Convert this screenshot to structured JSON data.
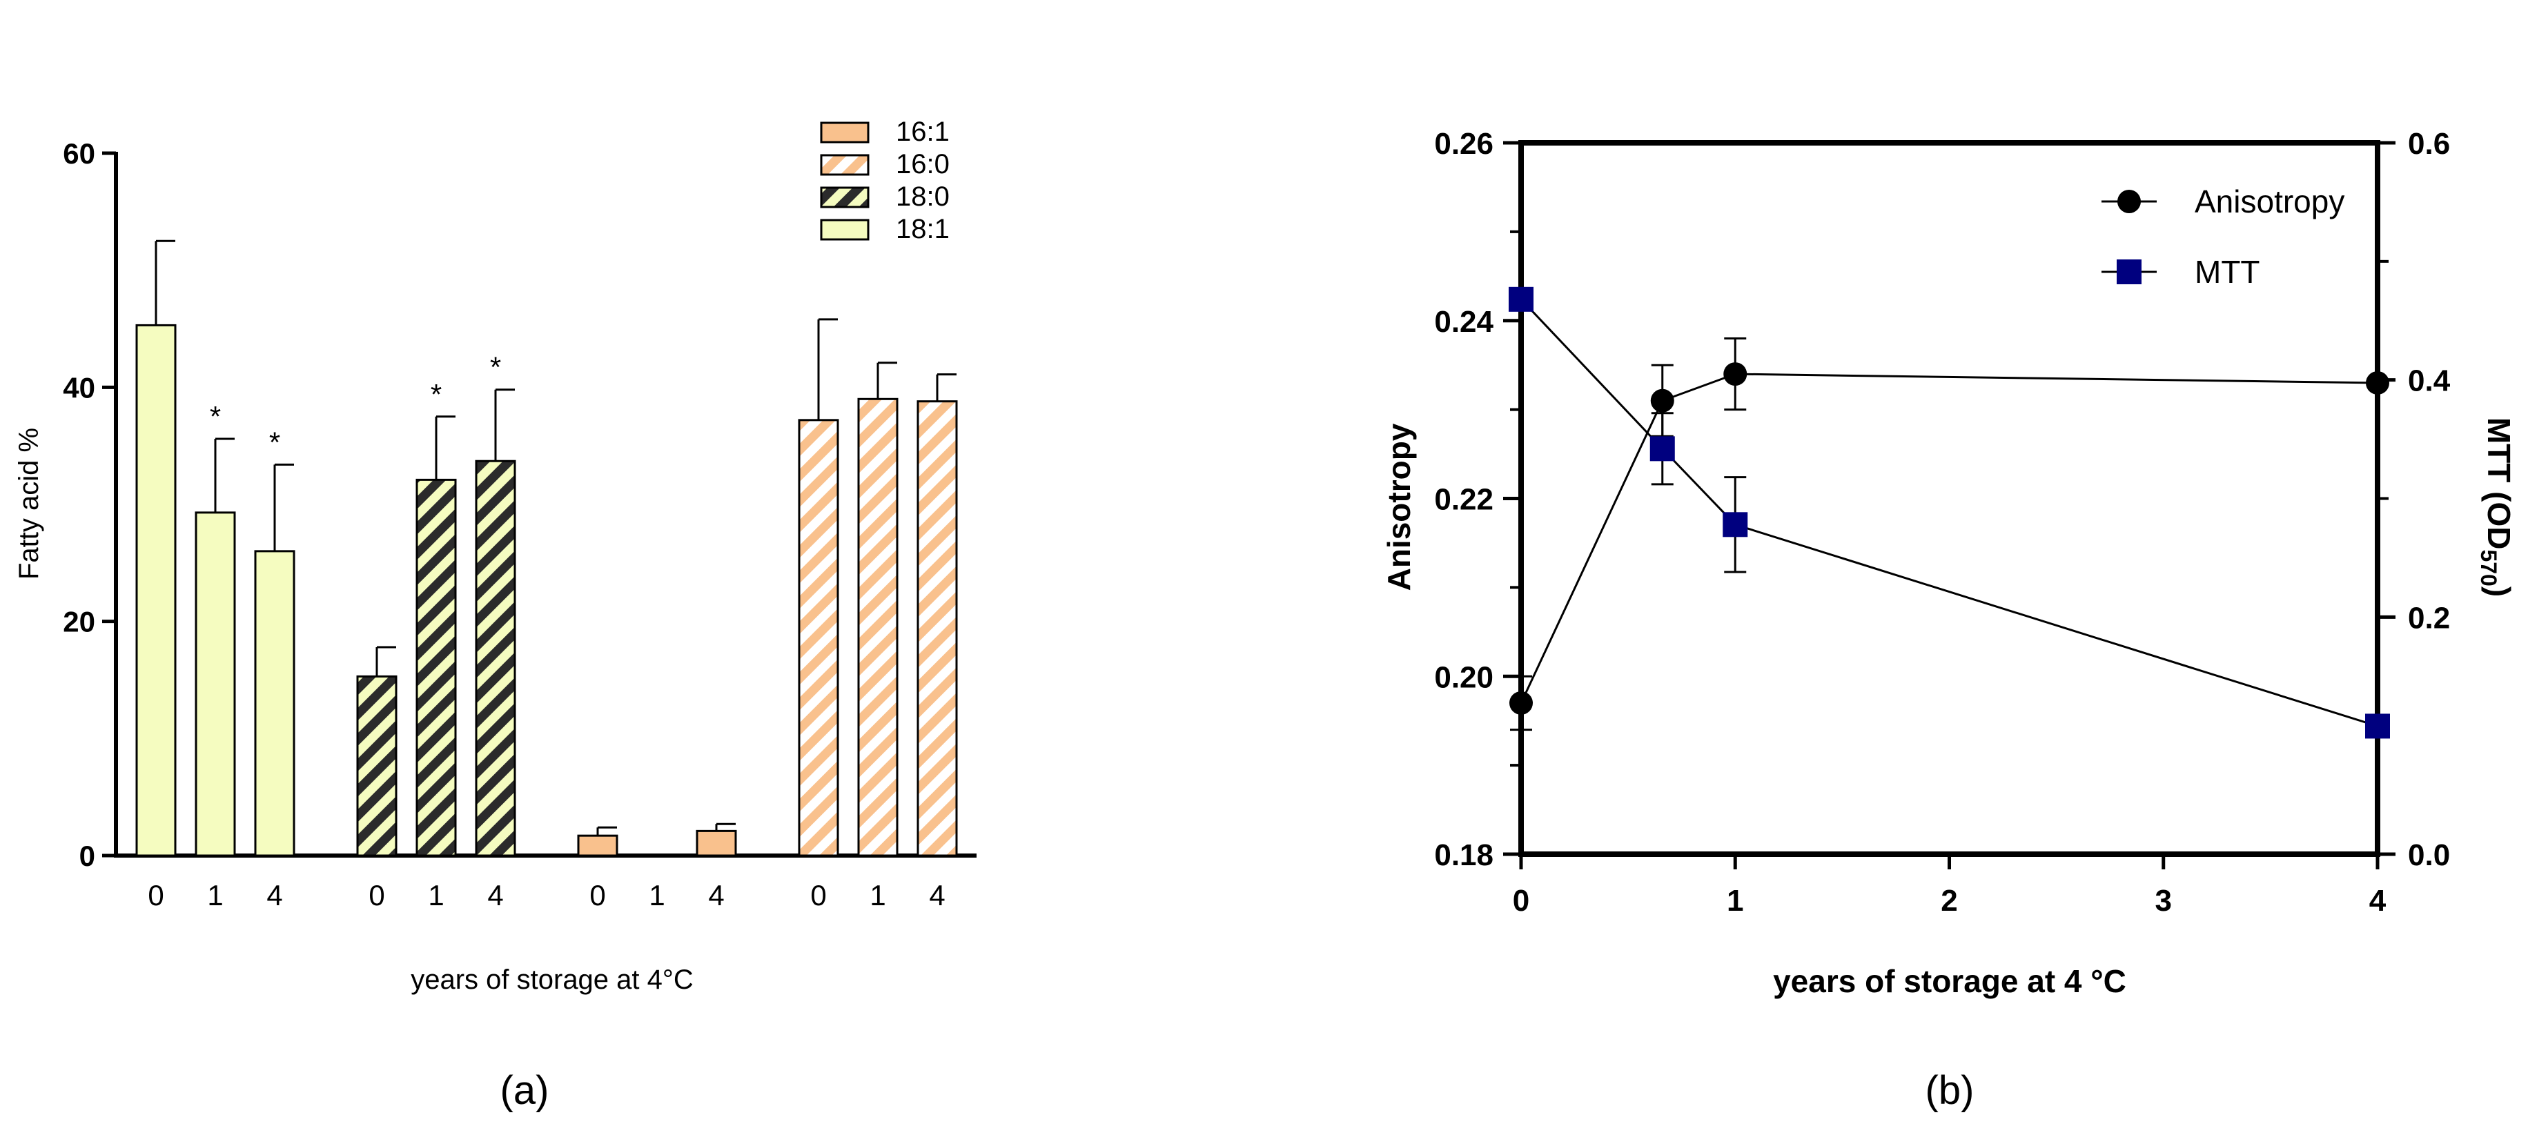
{
  "chart_data": [
    {
      "type": "bar",
      "panel_label": "(a)",
      "xlabel": "years of storage at 4°C",
      "ylabel": "Fatty acid %",
      "ylim": [
        0,
        60
      ],
      "yticks": [
        0,
        20,
        40,
        60
      ],
      "grid": false,
      "legend_position": "top-right",
      "colors": {
        "18:1": "#f5fcc0",
        "18:0": "#f5fcc0",
        "16:1": "#f9c18d",
        "16:0": "#f9c18d",
        "hatch_dark": "#2b2b2b",
        "hatch_light": "#ffffff"
      },
      "legend": [
        {
          "name": "16:1",
          "pattern": "solid"
        },
        {
          "name": "16:0",
          "pattern": "hatch-light"
        },
        {
          "name": "18:0",
          "pattern": "hatch-dark"
        },
        {
          "name": "18:1",
          "pattern": "solid"
        }
      ],
      "groups": [
        {
          "series": "18:1",
          "categories": [
            "0",
            "1",
            "4"
          ],
          "values": [
            45.3,
            29.3,
            26.0
          ],
          "errors": [
            7.2,
            6.3,
            7.4
          ],
          "significant": [
            false,
            true,
            true
          ]
        },
        {
          "series": "18:0",
          "categories": [
            "0",
            "1",
            "4"
          ],
          "values": [
            15.3,
            32.1,
            33.7
          ],
          "errors": [
            2.5,
            5.4,
            6.1
          ],
          "significant": [
            false,
            true,
            true
          ]
        },
        {
          "series": "16:1",
          "categories": [
            "0",
            "1",
            "4"
          ],
          "values": [
            1.7,
            0,
            2.1
          ],
          "errors": [
            0.7,
            0,
            0.6
          ],
          "significant": [
            false,
            false,
            false
          ]
        },
        {
          "series": "16:0",
          "categories": [
            "0",
            "1",
            "4"
          ],
          "values": [
            37.2,
            39.0,
            38.8
          ],
          "errors": [
            8.6,
            3.1,
            2.3
          ],
          "significant": [
            false,
            false,
            false
          ]
        }
      ],
      "significance_marker": "*"
    },
    {
      "type": "line",
      "panel_label": "(b)",
      "xlabel": "years of storage at 4 °C",
      "ylabel": "Anisotropy",
      "y2label": "MTT (OD",
      "y2label_sub": "570",
      "y2label_end": ")",
      "xlim": [
        0,
        4
      ],
      "xticks": [
        0,
        1,
        2,
        3,
        4
      ],
      "ylim": [
        0.18,
        0.26
      ],
      "yticks": [
        "0.18",
        "0.20",
        "0.22",
        "0.24",
        "0.26"
      ],
      "y2lim": [
        0.0,
        0.6
      ],
      "y2ticks": [
        "0.0",
        "0.2",
        "0.4",
        "0.6"
      ],
      "grid": false,
      "legend_position": "top-right",
      "series": [
        {
          "name": "Anisotropy",
          "marker": "circle",
          "color": "#000000",
          "axis": "left",
          "x": [
            0,
            0.66,
            1,
            4
          ],
          "y": [
            0.197,
            0.231,
            0.234,
            0.233
          ],
          "errors": [
            0.003,
            0.004,
            0.004,
            0
          ]
        },
        {
          "name": "MTT",
          "marker": "square",
          "color": "#00007f",
          "axis": "right",
          "x": [
            0,
            0.66,
            1,
            4
          ],
          "y": [
            0.468,
            0.342,
            0.278,
            0.108
          ],
          "errors": [
            0,
            0.03,
            0.04,
            0
          ]
        }
      ]
    }
  ]
}
